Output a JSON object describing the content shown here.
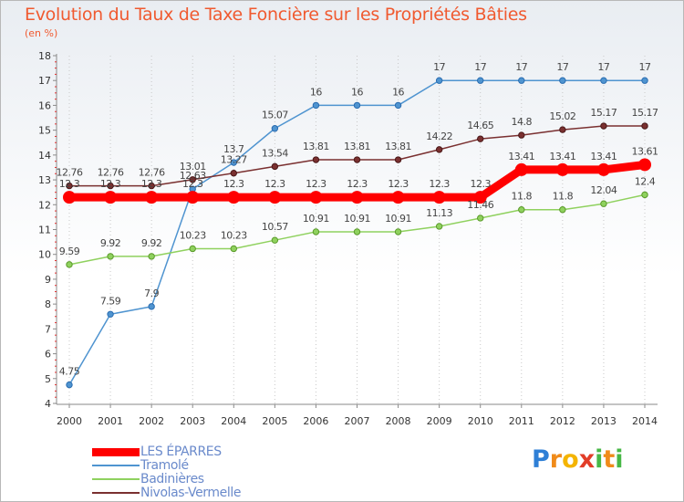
{
  "title": "Evolution du Taux de Taxe Foncière sur les Propriétés Bâties",
  "subtitle": "(en %)",
  "logo": "Proxiti",
  "chart_data": {
    "type": "line",
    "title": "Evolution du Taux de Taxe Foncière sur les Propriétés Bâties",
    "ylabel": "(en %)",
    "xlabel": "",
    "x": [
      "2000",
      "2001",
      "2002",
      "2003",
      "2004",
      "2005",
      "2006",
      "2007",
      "2008",
      "2009",
      "2010",
      "2011",
      "2012",
      "2013",
      "2014"
    ],
    "ylim": [
      4,
      18
    ],
    "yticks": [
      "4",
      "5",
      "6",
      "7",
      "8",
      "9",
      "10",
      "11",
      "12",
      "13",
      "14",
      "15",
      "16",
      "17",
      "18"
    ],
    "grid": "vertical dotted",
    "legend_position": "bottom-left",
    "series": [
      {
        "name": "LES ÉPARRES",
        "color": "#ff0000",
        "values": [
          12.3,
          12.3,
          12.3,
          12.3,
          12.3,
          12.3,
          12.3,
          12.3,
          12.3,
          12.3,
          12.3,
          13.41,
          13.41,
          13.41,
          13.61
        ],
        "labels": [
          "12.3",
          "12.3",
          "12.3",
          "12.3",
          "12.3",
          "12.3",
          "12.3",
          "12.3",
          "12.3",
          "12.3",
          "12.3",
          "13.41",
          "13.41",
          "13.41",
          "13.61"
        ]
      },
      {
        "name": "Tramolé",
        "color": "#4f94d0",
        "values": [
          4.75,
          7.59,
          7.9,
          12.63,
          13.7,
          15.07,
          16,
          16,
          16,
          17,
          17,
          17,
          17,
          17,
          17
        ],
        "labels": [
          "4.75",
          "7.59",
          "7.9",
          "12.63",
          "13.7",
          "15.07",
          "16",
          "16",
          "16",
          "17",
          "17",
          "17",
          "17",
          "17",
          "17"
        ]
      },
      {
        "name": "Badinières",
        "color": "#8fd15e",
        "values": [
          9.59,
          9.92,
          9.92,
          10.23,
          10.23,
          10.57,
          10.91,
          10.91,
          10.91,
          11.13,
          11.46,
          11.8,
          11.8,
          12.04,
          12.4
        ],
        "labels": [
          "9.59",
          "9.92",
          "9.92",
          "10.23",
          "10.23",
          "10.57",
          "10.91",
          "10.91",
          "10.91",
          "11.13",
          "11.46",
          "11.8",
          "11.8",
          "12.04",
          "12.4"
        ]
      },
      {
        "name": "Nivolas-Vermelle",
        "color": "#7a3030",
        "values": [
          12.76,
          12.76,
          12.76,
          13.01,
          13.27,
          13.54,
          13.81,
          13.81,
          13.81,
          14.22,
          14.65,
          14.8,
          15.02,
          15.17,
          15.17
        ],
        "labels": [
          "12.76",
          "12.76",
          "12.76",
          "13.01",
          "13.27",
          "13.54",
          "13.81",
          "13.81",
          "13.81",
          "14.22",
          "14.65",
          "14.8",
          "15.02",
          "15.17",
          "15.17"
        ]
      }
    ]
  }
}
